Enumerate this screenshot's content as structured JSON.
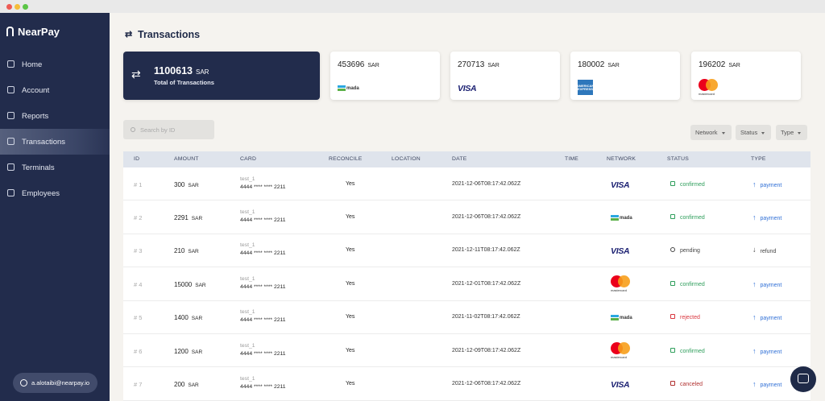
{
  "sidebar": {
    "brand": "NearPay",
    "nav": [
      "Home",
      "Account",
      "Reports",
      "Transactions",
      "Terminals",
      "Employees"
    ],
    "active": 3,
    "user": "a.alotaibi@nearpay.io"
  },
  "header": {
    "title": "Transactions"
  },
  "summary": {
    "total": 1100613,
    "currency": "SAR",
    "label": "Total of Transactions"
  },
  "networks": [
    {
      "amount": 453696,
      "currency": "SAR",
      "name": "mada"
    },
    {
      "amount": 270713,
      "currency": "SAR",
      "name": "VISA"
    },
    {
      "amount": 180002,
      "currency": "SAR",
      "name": "AMERICAN EXPRESS"
    },
    {
      "amount": 196202,
      "currency": "SAR",
      "name": "mastercard"
    }
  ],
  "search": {
    "placeholder": "Search by ID"
  },
  "filters": [
    "Network",
    "Status",
    "Type"
  ],
  "table": {
    "columns": [
      "ID",
      "AMOUNT",
      "CARD",
      "RECONCILE",
      "LOCATION",
      "DATE",
      "TIME",
      "NETWORK",
      "STATUS",
      "TYPE"
    ],
    "rows": [
      {
        "id": "# 1",
        "amount": 300,
        "currency": "SAR",
        "card_name": "test_1",
        "card_number": "4444 **** **** 2211",
        "reconcile": "Yes",
        "date": "2021-12-06T08:17:42.062Z",
        "network": "VISA",
        "status": "confirmed",
        "status_color": "#2e9e5b",
        "type": "payment"
      },
      {
        "id": "# 2",
        "amount": 2291,
        "currency": "SAR",
        "card_name": "test_1",
        "card_number": "4444 **** **** 2211",
        "reconcile": "Yes",
        "date": "2021-12-06T08:17:42.062Z",
        "network": "mada",
        "status": "confirmed",
        "status_color": "#2e9e5b",
        "type": "payment"
      },
      {
        "id": "# 3",
        "amount": 210,
        "currency": "SAR",
        "card_name": "test_1",
        "card_number": "4444 **** **** 2211",
        "reconcile": "Yes",
        "date": "2021-12-11T08:17:42.062Z",
        "network": "VISA",
        "status": "pending",
        "status_color": "#444444",
        "type": "refund"
      },
      {
        "id": "# 4",
        "amount": 15000,
        "currency": "SAR",
        "card_name": "test_1",
        "card_number": "4444 **** **** 2211",
        "reconcile": "Yes",
        "date": "2021-12-01T08:17:42.062Z",
        "network": "mastercard",
        "status": "confirmed",
        "status_color": "#2e9e5b",
        "type": "payment"
      },
      {
        "id": "# 5",
        "amount": 1400,
        "currency": "SAR",
        "card_name": "test_1",
        "card_number": "4444 **** **** 2211",
        "reconcile": "Yes",
        "date": "2021-11-02T08:17:42.062Z",
        "network": "mada",
        "status": "rejected",
        "status_color": "#d9363e",
        "type": "payment"
      },
      {
        "id": "# 6",
        "amount": 1200,
        "currency": "SAR",
        "card_name": "test_1",
        "card_number": "4444 **** **** 2211",
        "reconcile": "Yes",
        "date": "2021-12-09T08:17:42.062Z",
        "network": "mastercard",
        "status": "confirmed",
        "status_color": "#2e9e5b",
        "type": "payment"
      },
      {
        "id": "# 7",
        "amount": 200,
        "currency": "SAR",
        "card_name": "test_1",
        "card_number": "4444 **** **** 2211",
        "reconcile": "Yes",
        "date": "2021-12-06T08:17:42.062Z",
        "network": "VISA",
        "status": "canceled",
        "status_color": "#b0302f",
        "type": "payment"
      }
    ]
  }
}
